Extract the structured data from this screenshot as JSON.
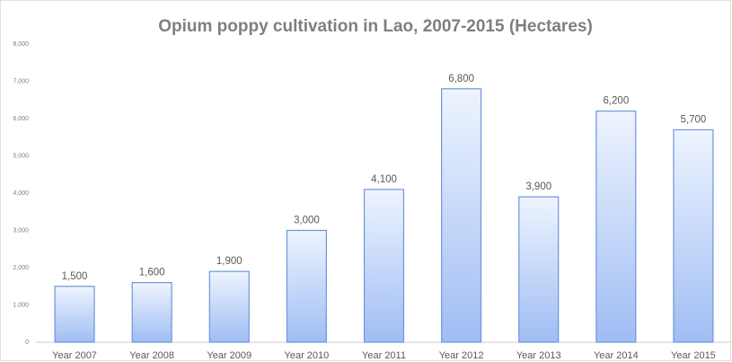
{
  "chart_data": {
    "type": "bar",
    "title": "Opium poppy cultivation in Lao, 2007-2015 (Hectares)",
    "categories": [
      "Year 2007",
      "Year 2008",
      "Year 2009",
      "Year 2010",
      "Year 2011",
      "Year 2012",
      "Year 2013",
      "Year 2014",
      "Year 2015"
    ],
    "values": [
      1500,
      1600,
      1900,
      3000,
      4100,
      6800,
      3900,
      6200,
      5700
    ],
    "value_labels": [
      "1,500",
      "1,600",
      "1,900",
      "3,000",
      "4,100",
      "6,800",
      "3,900",
      "6,200",
      "5,700"
    ],
    "color": "#9fbdf3",
    "ylim": [
      0,
      8000
    ],
    "yticks": [
      0,
      {
        "value": 1000,
        "label": "1,000"
      },
      {
        "value": 2000,
        "label": "2,000"
      },
      {
        "value": 3000,
        "label": "3,000"
      },
      {
        "value": 4000,
        "label": "4,000"
      },
      {
        "value": 5000,
        "label": "5,000"
      },
      {
        "value": 6000,
        "label": "6,000"
      },
      {
        "value": 7000,
        "label": "7,000"
      },
      {
        "value": 8000,
        "label": "8,000"
      }
    ],
    "grid": false
  }
}
